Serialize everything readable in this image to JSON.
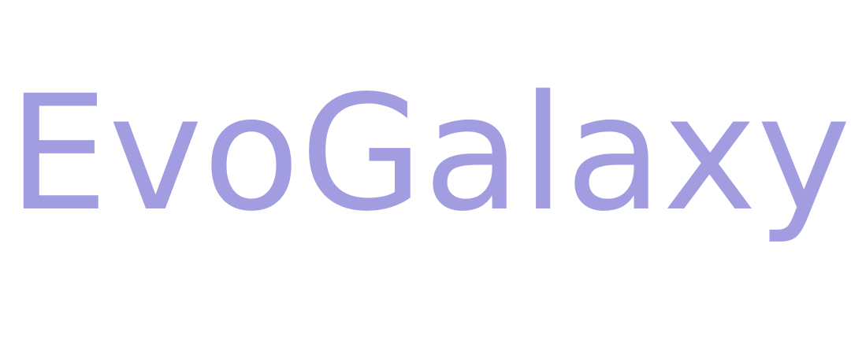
{
  "logo": {
    "text": "EvoGalaxy",
    "color": "#a29de0"
  },
  "background": "#ffffff"
}
